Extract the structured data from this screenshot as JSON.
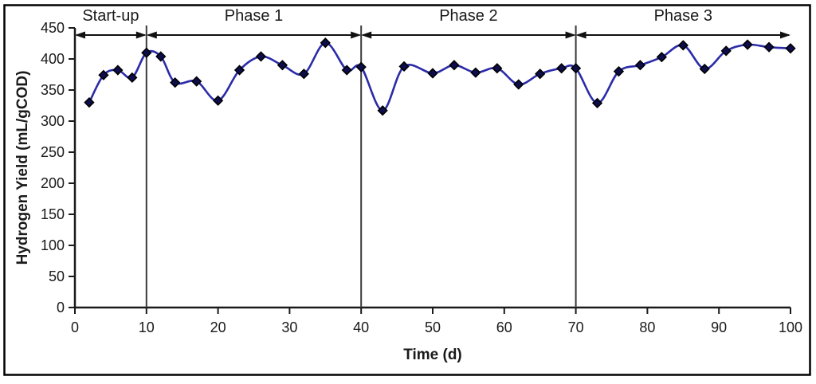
{
  "chart_data": {
    "type": "line",
    "title": "",
    "xlabel": "Time (d)",
    "ylabel": "Hydrogen Yield (mL/gCOD)",
    "xlim": [
      0,
      100
    ],
    "ylim": [
      0,
      450
    ],
    "x_ticks": [
      0,
      10,
      20,
      30,
      40,
      50,
      60,
      70,
      80,
      90,
      100
    ],
    "y_ticks": [
      0,
      50,
      100,
      150,
      200,
      250,
      300,
      350,
      400,
      450
    ],
    "grid": false,
    "legend": "none",
    "line_style": "smooth",
    "marker": "diamond",
    "series": [
      {
        "name": "Hydrogen Yield",
        "x": [
          2,
          4,
          6,
          8,
          10,
          12,
          14,
          17,
          20,
          23,
          26,
          29,
          32,
          35,
          38,
          40,
          43,
          46,
          50,
          53,
          56,
          59,
          62,
          65,
          68,
          70,
          73,
          76,
          79,
          82,
          85,
          88,
          91,
          94,
          97,
          100
        ],
        "y": [
          330,
          374,
          382,
          370,
          410,
          404,
          362,
          364,
          333,
          382,
          404,
          390,
          376,
          426,
          382,
          387,
          317,
          388,
          377,
          390,
          378,
          385,
          359,
          376,
          385,
          385,
          329,
          380,
          390,
          403,
          422,
          384,
          413,
          423,
          419,
          417
        ]
      }
    ],
    "phases": [
      {
        "label": "Start-up",
        "start": 0,
        "end": 10
      },
      {
        "label": "Phase 1",
        "start": 10,
        "end": 40
      },
      {
        "label": "Phase 2",
        "start": 40,
        "end": 70
      },
      {
        "label": "Phase 3",
        "start": 70,
        "end": 100
      }
    ],
    "phase_dividers": [
      10,
      40,
      70
    ],
    "colors": {
      "line": "#2B2BA8",
      "marker_fill": "#0D0D4D",
      "marker_edge": "#000000",
      "axis": "#1a1a1a",
      "divider": "#3a3a3a",
      "arrow": "#111111",
      "frame": "#000000",
      "background": "#ffffff"
    }
  }
}
